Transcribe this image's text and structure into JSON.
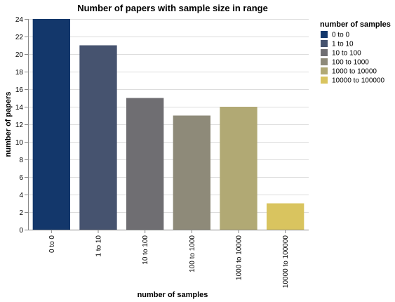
{
  "chart_data": {
    "type": "bar",
    "title": "Number of papers with sample size in range",
    "xlabel": "number of samples",
    "ylabel": "number of papers",
    "categories": [
      "0 to 0",
      "1 to 10",
      "10 to 100",
      "100 to 1000",
      "1000 to 10000",
      "10000 to 100000"
    ],
    "values": [
      24,
      21,
      15,
      13,
      14,
      3
    ],
    "colors": [
      "#13376b",
      "#46536f",
      "#6f6e72",
      "#8e8a79",
      "#b1a974",
      "#d9c45f"
    ],
    "ylim": [
      0,
      24
    ],
    "yticks": [
      0,
      2,
      4,
      6,
      8,
      10,
      12,
      14,
      16,
      18,
      20,
      22,
      24
    ],
    "grid": true,
    "legend": {
      "title": "number of samples",
      "placement": "right",
      "entries": [
        "0 to 0",
        "1 to 10",
        "10 to 100",
        "100 to 1000",
        "1000 to 10000",
        "10000 to 100000"
      ]
    }
  }
}
